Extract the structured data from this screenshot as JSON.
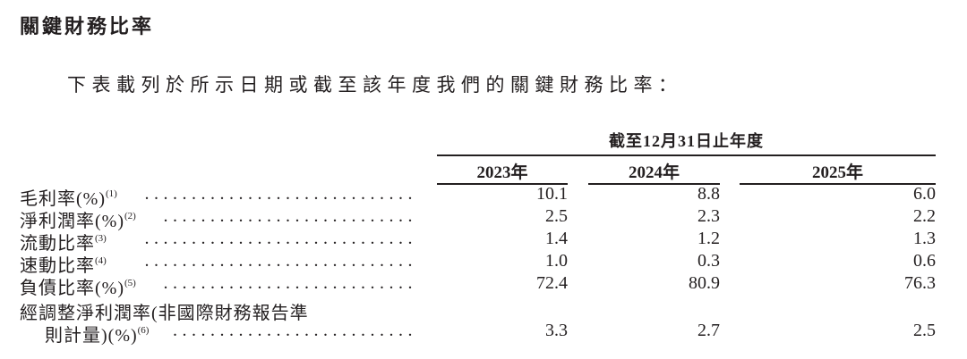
{
  "title": "關鍵財務比率",
  "intro": "下表載列於所示日期或截至該年度我們的關鍵財務比率：",
  "table": {
    "period_header": "截至12月31日止年度",
    "years": [
      "2023年",
      "2024年",
      "2025年"
    ],
    "rows": [
      {
        "label": "毛利率(%)",
        "note": "(1)",
        "values": [
          "10.1",
          "8.8",
          "6.0"
        ]
      },
      {
        "label": "淨利潤率(%)",
        "note": "(2)",
        "values": [
          "2.5",
          "2.3",
          "2.2"
        ]
      },
      {
        "label": "流動比率",
        "note": "(3)",
        "values": [
          "1.4",
          "1.2",
          "1.3"
        ]
      },
      {
        "label": "速動比率",
        "note": "(4)",
        "values": [
          "1.0",
          "0.3",
          "0.6"
        ]
      },
      {
        "label": "負債比率(%)",
        "note": "(5)",
        "values": [
          "72.4",
          "80.9",
          "76.3"
        ]
      },
      {
        "label": "經調整淨利潤率(非國際財務報告準",
        "label_line2": "則計量)(%)",
        "note": "(6)",
        "values": [
          "3.3",
          "2.7",
          "2.5"
        ]
      }
    ]
  }
}
